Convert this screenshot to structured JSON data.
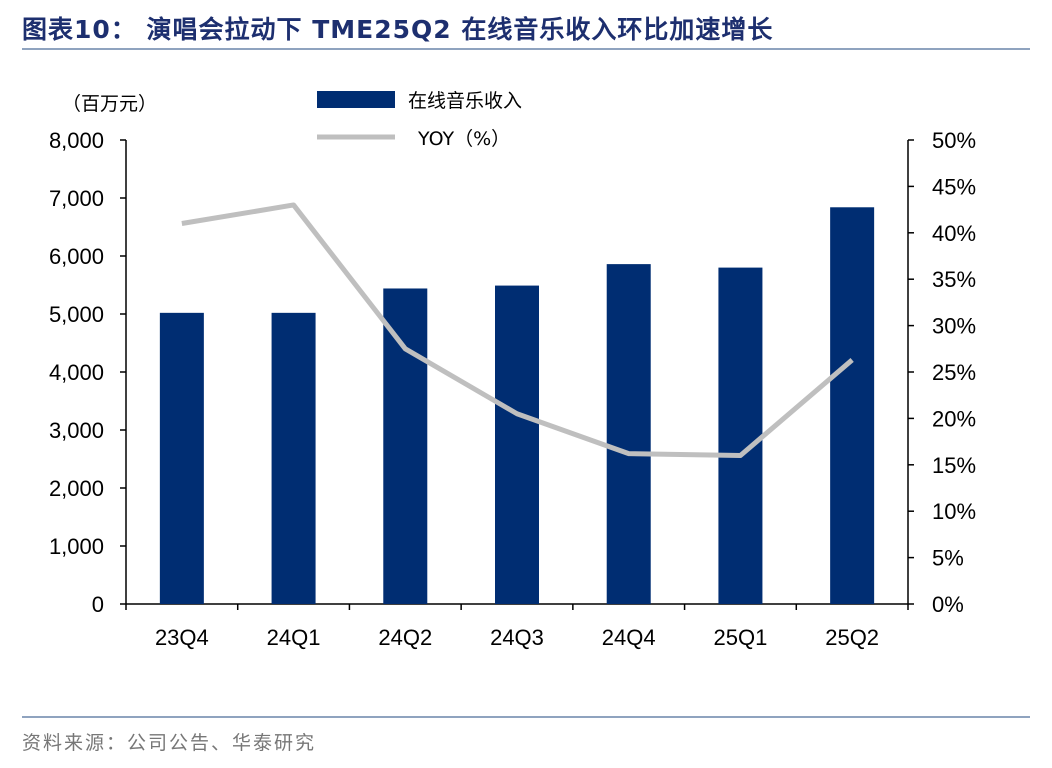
{
  "figure_title": "图表10：  演唱会拉动下 TME25Q2 在线音乐收入环比加速增长",
  "source_note": "资料来源：公司公告、华泰研究",
  "chart_data": {
    "type": "bar",
    "combo_line": true,
    "categories": [
      "23Q4",
      "24Q1",
      "24Q2",
      "24Q3",
      "24Q4",
      "25Q1",
      "25Q2"
    ],
    "series": [
      {
        "name": "在线音乐收入",
        "type": "bar",
        "axis": "left",
        "color": "#002D72",
        "values": [
          5020,
          5020,
          5440,
          5490,
          5860,
          5800,
          6840
        ]
      },
      {
        "name": "YOY（%）",
        "type": "line",
        "axis": "right",
        "color": "#BFBFBF",
        "values": [
          41.0,
          43.0,
          27.5,
          20.5,
          16.2,
          16.0,
          26.3
        ]
      }
    ],
    "y_left": {
      "unit_label": "（百万元）",
      "min": 0,
      "max": 8000,
      "step": 1000,
      "tick_labels": [
        "0",
        "1,000",
        "2,000",
        "3,000",
        "4,000",
        "5,000",
        "6,000",
        "7,000",
        "8,000"
      ]
    },
    "y_right": {
      "min": 0,
      "max": 50,
      "step": 5,
      "tick_labels": [
        "0%",
        "5%",
        "10%",
        "15%",
        "20%",
        "25%",
        "30%",
        "35%",
        "40%",
        "45%",
        "50%"
      ]
    },
    "grid": false,
    "legend_position": "top-center"
  }
}
